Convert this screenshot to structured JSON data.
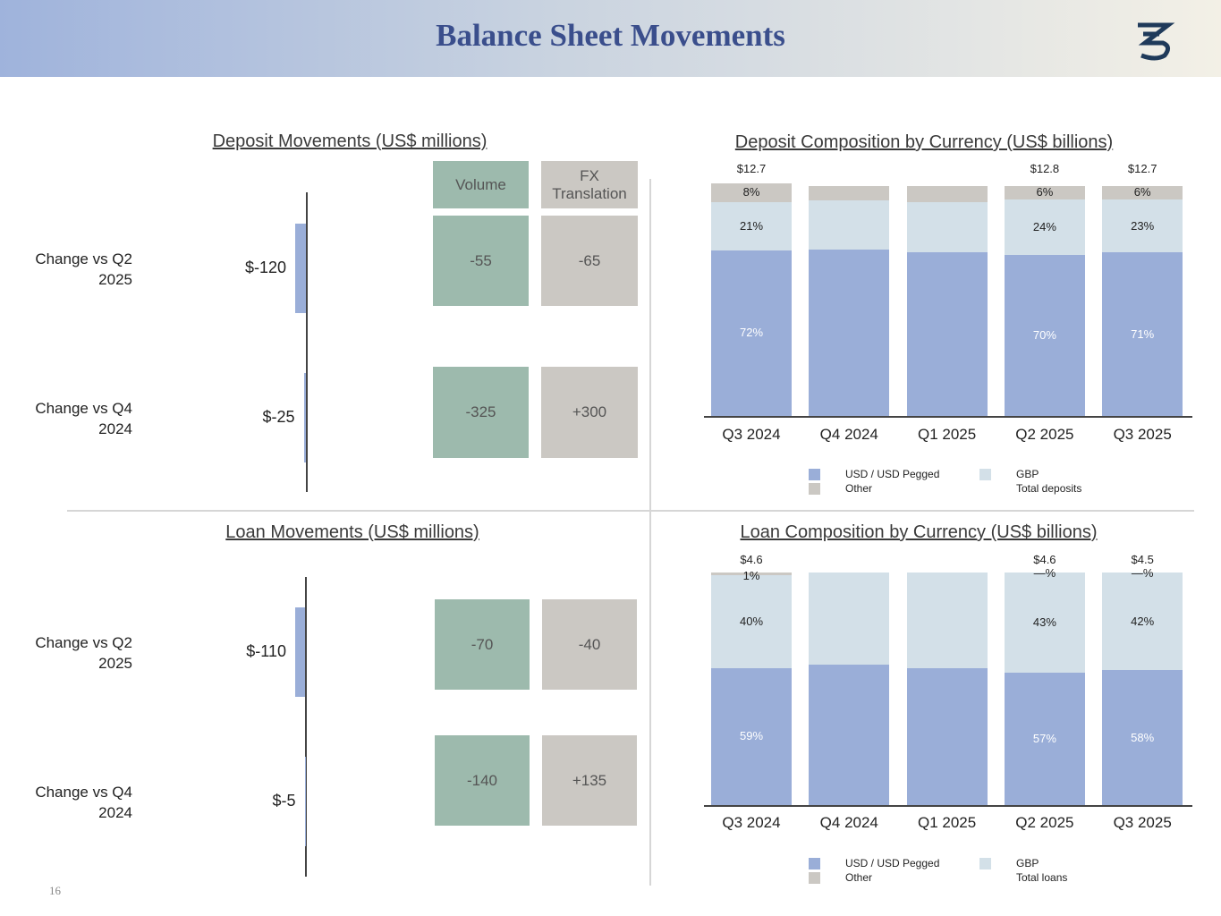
{
  "header": {
    "title": "Balance Sheet Movements"
  },
  "page_number": "16",
  "chart_data": [
    {
      "type": "bridge",
      "title": "Deposit Movements (US$ millions)",
      "categories": [
        "Change vs Q2 2025",
        "Change vs Q4 2024"
      ],
      "columns": [
        "Volume",
        "FX Translation"
      ],
      "totals": {
        "values": [
          -120,
          -25
        ],
        "value_labels": [
          "$-120",
          "$-25"
        ],
        "color": "#9aaed8"
      },
      "volume": {
        "values": [
          -55,
          -325
        ],
        "color": "#9dbaad"
      },
      "fx": {
        "values": [
          -65,
          300
        ],
        "value_labels": [
          "-65",
          "+300"
        ],
        "color": "#cbc8c3"
      }
    },
    {
      "type": "bar",
      "stacked": true,
      "title": "Deposit Composition by Currency (US$ billions)",
      "categories": [
        "Q3 2024",
        "Q4 2024",
        "Q1 2025",
        "Q2 2025",
        "Q3 2025"
      ],
      "series": [
        {
          "name": "USD / USD Pegged",
          "color": "#9aaed8",
          "values": [
            72,
            72.3,
            71.2,
            70,
            71
          ],
          "value_labels": [
            "72%",
            null,
            null,
            "70%",
            "71%"
          ]
        },
        {
          "name": "GBP",
          "color": "#d3e0e8",
          "values": [
            21,
            21.5,
            21.5,
            24,
            23
          ],
          "value_labels": [
            "21%",
            null,
            null,
            "24%",
            "23%"
          ]
        },
        {
          "name": "Other",
          "color": "#cbc8c3",
          "values": [
            8,
            6.2,
            7.3,
            6,
            6
          ],
          "value_labels": [
            "8%",
            null,
            null,
            "6%",
            "6%"
          ]
        },
        {
          "name": "Total deposits",
          "values": [
            12.7,
            null,
            null,
            12.8,
            12.7
          ],
          "value_labels": [
            "$12.7",
            null,
            null,
            "$12.8",
            "$12.7"
          ]
        }
      ]
    },
    {
      "type": "bridge",
      "title": "Loan Movements (US$ millions)",
      "categories": [
        "Change vs Q2 2025",
        "Change vs Q4 2024"
      ],
      "totals": {
        "values": [
          -110,
          -5
        ],
        "value_labels": [
          "$-110",
          "$-5"
        ],
        "color": "#9aaed8"
      },
      "volume": {
        "values": [
          -70,
          -140
        ],
        "color": "#9dbaad"
      },
      "fx": {
        "values": [
          -40,
          135
        ],
        "value_labels": [
          "-40",
          "+135"
        ],
        "color": "#cbc8c3"
      }
    },
    {
      "type": "bar",
      "stacked": true,
      "title": "Loan Composition by Currency (US$ billions)",
      "categories": [
        "Q3 2024",
        "Q4 2024",
        "Q1 2025",
        "Q2 2025",
        "Q3 2025"
      ],
      "series": [
        {
          "name": "USD / USD Pegged",
          "color": "#9aaed8",
          "values": [
            59,
            60.4,
            58.8,
            57,
            58
          ],
          "value_labels": [
            "59%",
            null,
            null,
            "57%",
            "58%"
          ]
        },
        {
          "name": "GBP",
          "color": "#d3e0e8",
          "values": [
            40,
            39.6,
            41.2,
            43,
            42
          ],
          "value_labels": [
            "40%",
            null,
            null,
            "43%",
            "42%"
          ]
        },
        {
          "name": "Other",
          "color": "#cbc8c3",
          "values": [
            1,
            0,
            0,
            0,
            0
          ],
          "value_labels": [
            "1%",
            null,
            null,
            "—%",
            "—%"
          ]
        },
        {
          "name": "Total loans",
          "values": [
            4.6,
            null,
            null,
            4.6,
            4.5
          ],
          "value_labels": [
            "$4.6",
            null,
            null,
            "$4.6",
            "$4.5"
          ]
        }
      ]
    }
  ]
}
